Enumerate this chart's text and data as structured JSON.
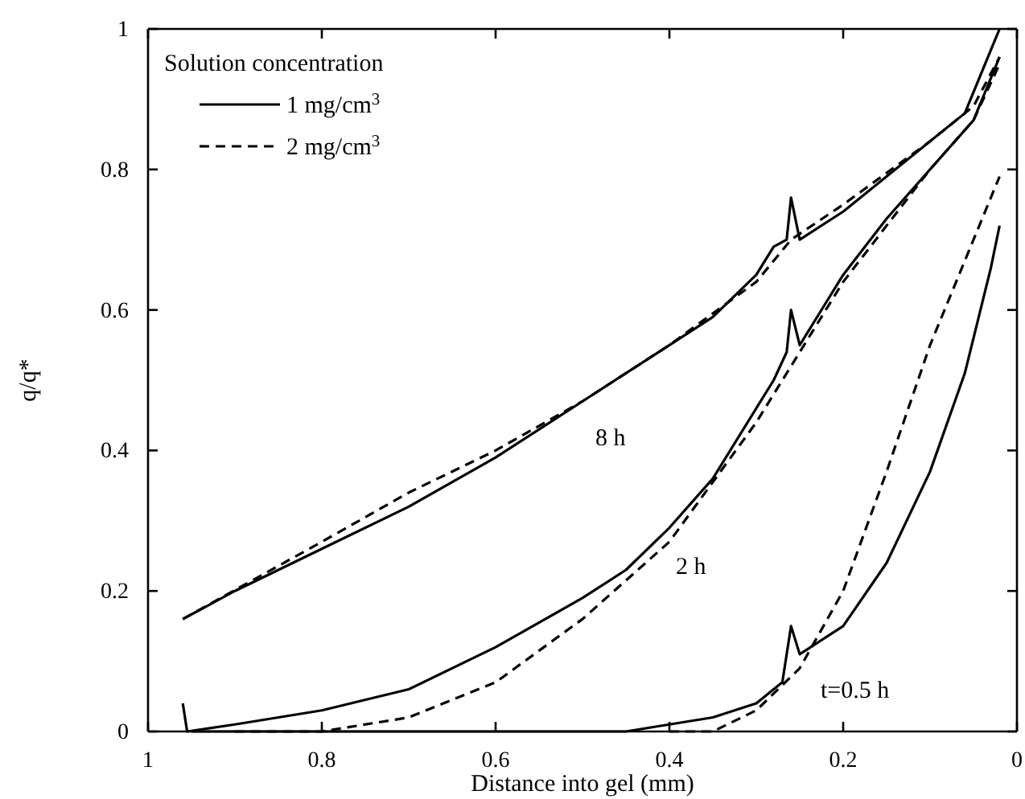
{
  "chart_data": {
    "type": "line",
    "xlabel": "Distance into gel (mm)",
    "ylabel": "q/q*",
    "legend_title": "Solution concentration",
    "xlim": [
      1,
      0
    ],
    "xticks": [
      1,
      0.8,
      0.6,
      0.4,
      0.2,
      0
    ],
    "ylim": [
      0,
      1
    ],
    "yticks": [
      0,
      0.2,
      0.4,
      0.6,
      0.8,
      1
    ],
    "legend": "top left",
    "grid": false,
    "marker": "none",
    "series": [
      {
        "name": "1 mg/cm$^{3}$",
        "color": "#000000",
        "line_style": "solid",
        "x": [
          0.96,
          0.9,
          0.8,
          0.7,
          0.6,
          0.5,
          0.4,
          0.35,
          0.3,
          0.28,
          0.265,
          0.26,
          0.25,
          0.2,
          0.15,
          0.1,
          0.06,
          0.03,
          0.02
        ],
        "values": [
          0.16,
          0.2,
          0.26,
          0.32,
          0.39,
          0.47,
          0.55,
          0.59,
          0.65,
          0.69,
          0.7,
          0.76,
          0.7,
          0.74,
          0.79,
          0.84,
          0.88,
          0.97,
          1.0
        ]
      },
      {
        "name": "2 mg/cm$^{3}$",
        "color": "#000000",
        "line_style": "dashed",
        "x": [
          0.96,
          0.8,
          0.7,
          0.6,
          0.5,
          0.4,
          0.3,
          0.26,
          0.2,
          0.1,
          0.05,
          0.02
        ],
        "values": [
          0.16,
          0.27,
          0.34,
          0.4,
          0.47,
          0.55,
          0.64,
          0.7,
          0.75,
          0.84,
          0.89,
          0.96
        ]
      },
      {
        "color": "#000000",
        "line_style": "solid",
        "x": [
          0.96,
          0.955,
          0.9,
          0.8,
          0.7,
          0.6,
          0.5,
          0.45,
          0.4,
          0.35,
          0.3,
          0.28,
          0.265,
          0.26,
          0.25,
          0.2,
          0.15,
          0.1,
          0.05,
          0.02
        ],
        "values": [
          0.04,
          0.0,
          0.01,
          0.03,
          0.06,
          0.12,
          0.19,
          0.23,
          0.29,
          0.36,
          0.46,
          0.5,
          0.54,
          0.6,
          0.55,
          0.65,
          0.73,
          0.8,
          0.87,
          0.96
        ]
      },
      {
        "color": "#000000",
        "line_style": "dashed",
        "x": [
          0.9,
          0.8,
          0.7,
          0.6,
          0.5,
          0.4,
          0.3,
          0.25,
          0.2,
          0.1,
          0.05,
          0.02
        ],
        "values": [
          0.0,
          0.0,
          0.02,
          0.07,
          0.16,
          0.27,
          0.44,
          0.54,
          0.64,
          0.8,
          0.87,
          0.95
        ]
      },
      {
        "color": "#000000",
        "line_style": "solid",
        "x": [
          0.95,
          0.6,
          0.45,
          0.4,
          0.35,
          0.3,
          0.27,
          0.26,
          0.25,
          0.2,
          0.15,
          0.1,
          0.06,
          0.03,
          0.02
        ],
        "values": [
          0.0,
          0.0,
          0.0,
          0.01,
          0.02,
          0.04,
          0.07,
          0.15,
          0.11,
          0.15,
          0.24,
          0.37,
          0.51,
          0.66,
          0.72
        ]
      },
      {
        "color": "#000000",
        "line_style": "dashed",
        "x": [
          0.4,
          0.35,
          0.3,
          0.25,
          0.2,
          0.15,
          0.1,
          0.05,
          0.02
        ],
        "values": [
          0.0,
          0.0,
          0.03,
          0.09,
          0.2,
          0.37,
          0.55,
          0.7,
          0.79
        ]
      }
    ],
    "annotations": [
      "8 h",
      "2 h",
      "t=0.5 h"
    ]
  }
}
